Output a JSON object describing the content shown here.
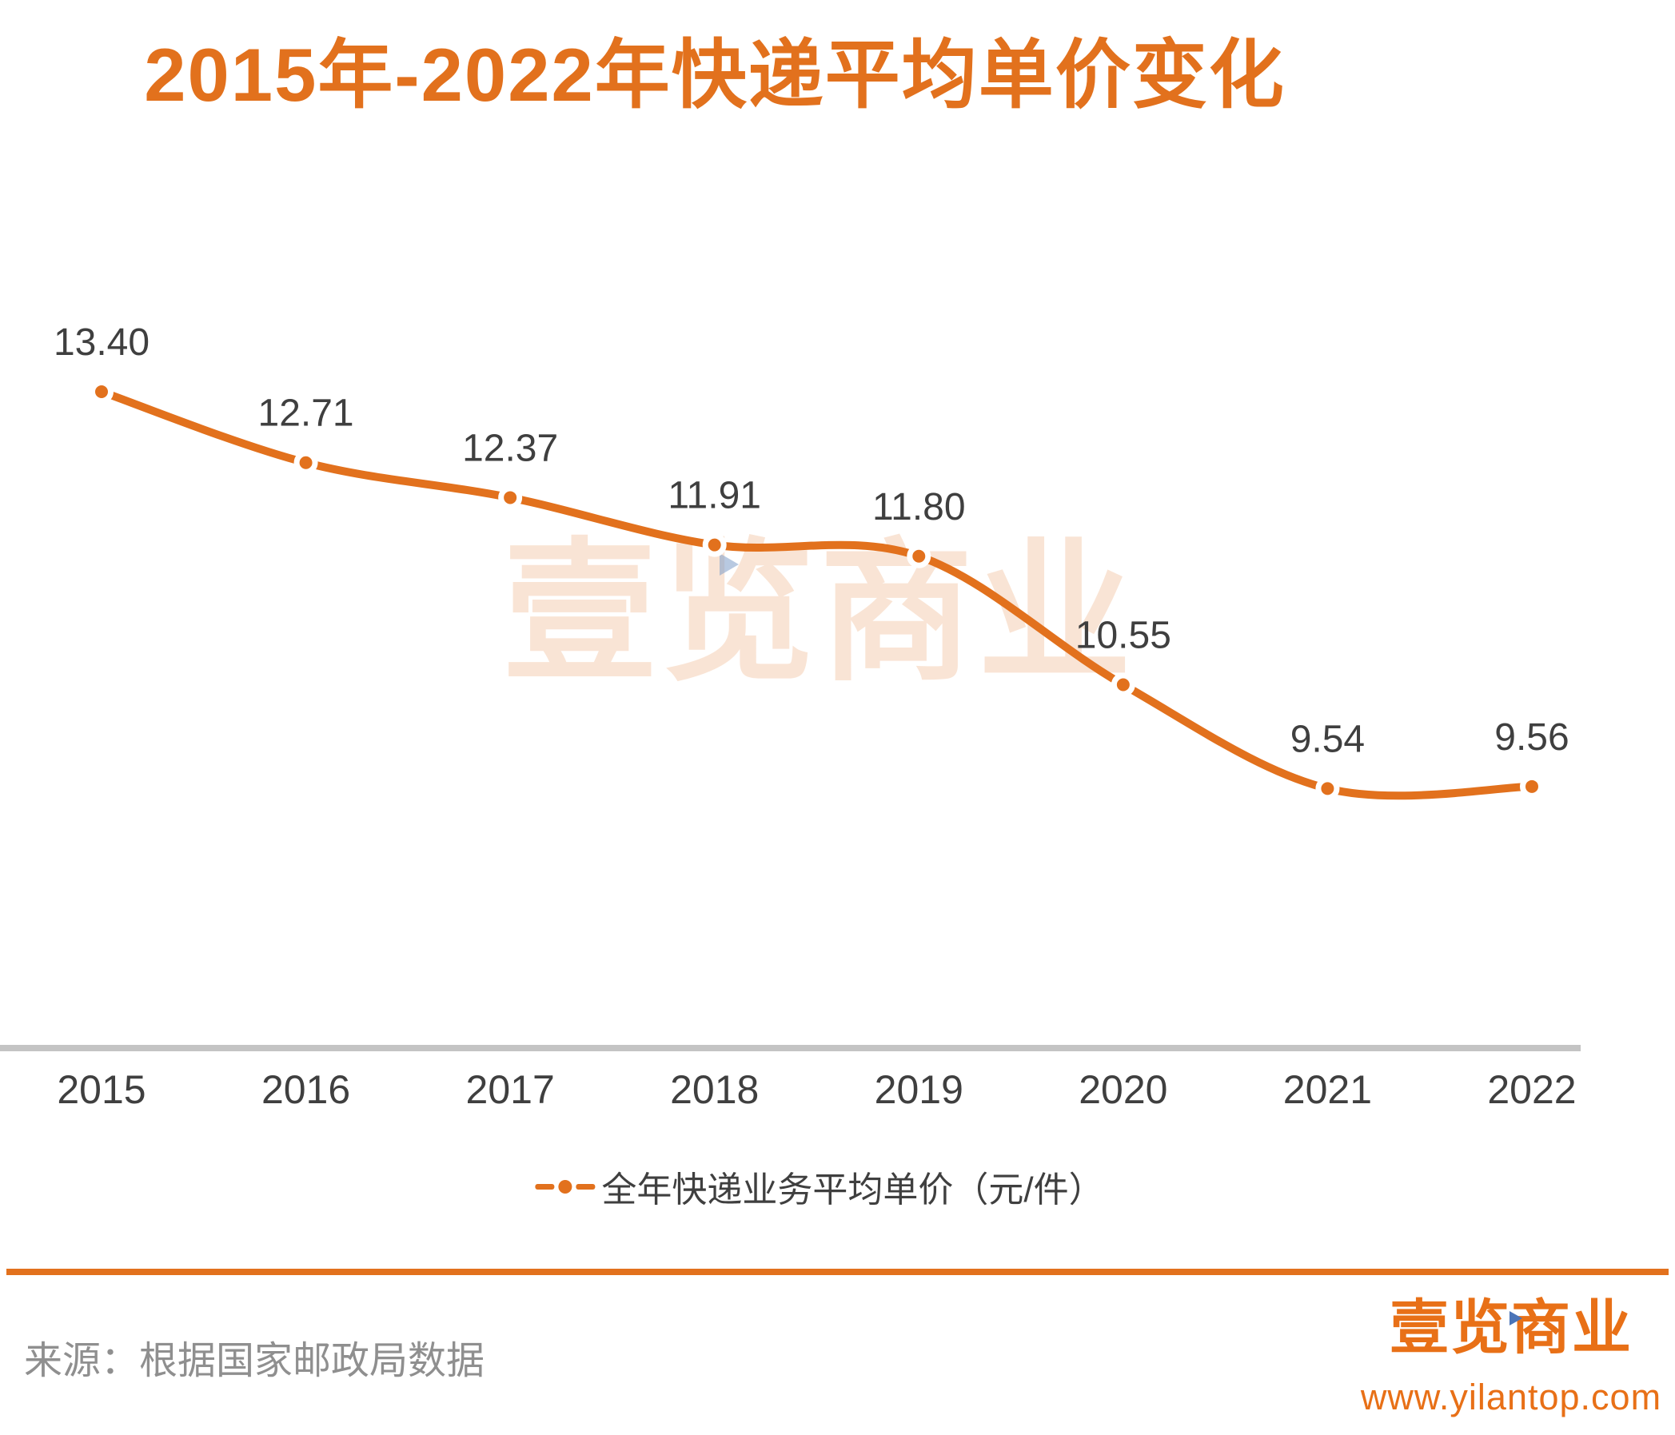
{
  "title": "2015年-2022年快递平均单价变化",
  "watermark": {
    "text": "壹览商业"
  },
  "chart_data": {
    "type": "line",
    "categories": [
      "2015",
      "2016",
      "2017",
      "2018",
      "2019",
      "2020",
      "2021",
      "2022"
    ],
    "series": [
      {
        "name": "全年快递业务平均单价（元/件）",
        "values": [
          13.4,
          12.71,
          12.37,
          11.91,
          11.8,
          10.55,
          9.54,
          9.56
        ]
      }
    ],
    "point_labels": [
      "13.40",
      "12.71",
      "12.37",
      "11.91",
      "11.80",
      "10.55",
      "9.54",
      "9.56"
    ],
    "title": "2015年-2022年快递平均单价变化",
    "xlabel": "",
    "ylabel": "",
    "unit": "元/件",
    "ylim": [
      9.0,
      14.0
    ],
    "grid": false,
    "legend_position": "bottom",
    "line_color": "#E2711D",
    "marker": "circle"
  },
  "legend": {
    "label": "全年快递业务平均单价（元/件）"
  },
  "footer": {
    "source": "来源：根据国家邮政局数据",
    "brand": "壹览商业",
    "url": "www.yilantop.com"
  },
  "colors": {
    "accent": "#E2711D",
    "brand": "#E87017",
    "label_text": "#3F3F3F",
    "muted_text": "#8F8F8F",
    "axis_line": "#C4C4C4",
    "watermark_triangle_blue": "#7E9CC8",
    "brand_triangle_blue": "#4A74B8"
  }
}
